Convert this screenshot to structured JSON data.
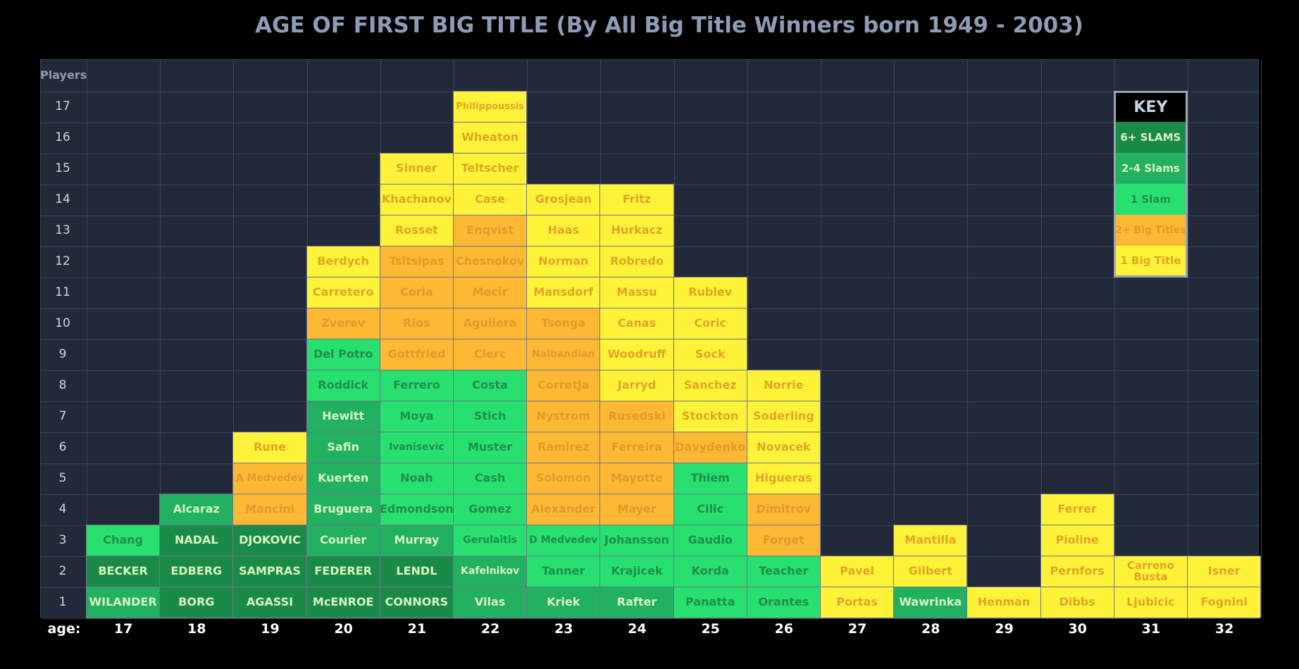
{
  "colors": {
    "background": "#000000",
    "grid_bg": "#222938",
    "six_plus_slams": "#1a8a48",
    "two_four_slams": "#22b061",
    "one_slam": "#28e070",
    "two_plus_big_titles": "#fdb933",
    "one_big_title": "#fff33a",
    "text_on_green": "#d8f5c0",
    "text_on_yellow": "#e3a325",
    "text_on_orange": "#e59a2a"
  },
  "chart_data": {
    "type": "table",
    "title": "AGE OF FIRST BIG TITLE (By All Big Title Winners born 1949 - 2003)",
    "ylabel": "Players",
    "xlabel": "age:",
    "ages": [
      17,
      18,
      19,
      20,
      21,
      22,
      23,
      24,
      25,
      26,
      27,
      28,
      29,
      30,
      31,
      32
    ],
    "player_rows": [
      1,
      2,
      3,
      4,
      5,
      6,
      7,
      8,
      9,
      10,
      11,
      12,
      13,
      14,
      15,
      16,
      17
    ],
    "columns": [
      {
        "age": 17,
        "players": [
          {
            "name": "WILANDER",
            "category": "2-4 Slams"
          },
          {
            "name": "BECKER",
            "category": "6+ SLAMS"
          },
          {
            "name": "Chang",
            "category": "1 Slam"
          }
        ]
      },
      {
        "age": 18,
        "players": [
          {
            "name": "BORG",
            "category": "6+ SLAMS"
          },
          {
            "name": "EDBERG",
            "category": "6+ SLAMS"
          },
          {
            "name": "NADAL",
            "category": "6+ SLAMS"
          },
          {
            "name": "Alcaraz",
            "category": "2-4 Slams"
          }
        ]
      },
      {
        "age": 19,
        "players": [
          {
            "name": "AGASSI",
            "category": "6+ SLAMS"
          },
          {
            "name": "SAMPRAS",
            "category": "6+ SLAMS"
          },
          {
            "name": "DJOKOVIC",
            "category": "6+ SLAMS"
          },
          {
            "name": "Mancini",
            "category": "2+ Big Titles"
          },
          {
            "name": "A Medvedev",
            "category": "2+ Big Titles"
          },
          {
            "name": "Rune",
            "category": "1 Big Title"
          }
        ]
      },
      {
        "age": 20,
        "players": [
          {
            "name": "McENROE",
            "category": "6+ SLAMS"
          },
          {
            "name": "FEDERER",
            "category": "6+ SLAMS"
          },
          {
            "name": "Courier",
            "category": "2-4 Slams"
          },
          {
            "name": "Bruguera",
            "category": "2-4 Slams"
          },
          {
            "name": "Kuerten",
            "category": "2-4 Slams"
          },
          {
            "name": "Safin",
            "category": "2-4 Slams"
          },
          {
            "name": "Hewitt",
            "category": "2-4 Slams"
          },
          {
            "name": "Roddick",
            "category": "1 Slam"
          },
          {
            "name": "Del Potro",
            "category": "1 Slam"
          },
          {
            "name": "Zverev",
            "category": "2+ Big Titles"
          },
          {
            "name": "Carretero",
            "category": "1 Big Title"
          },
          {
            "name": "Berdych",
            "category": "1 Big Title"
          }
        ]
      },
      {
        "age": 21,
        "players": [
          {
            "name": "CONNORS",
            "category": "6+ SLAMS"
          },
          {
            "name": "LENDL",
            "category": "6+ SLAMS"
          },
          {
            "name": "Murray",
            "category": "2-4 Slams"
          },
          {
            "name": "Edmondson",
            "category": "1 Slam"
          },
          {
            "name": "Noah",
            "category": "1 Slam"
          },
          {
            "name": "Ivanisevic",
            "category": "1 Slam"
          },
          {
            "name": "Moya",
            "category": "1 Slam"
          },
          {
            "name": "Ferrero",
            "category": "1 Slam"
          },
          {
            "name": "Gottfried",
            "category": "2+ Big Titles"
          },
          {
            "name": "Rios",
            "category": "2+ Big Titles"
          },
          {
            "name": "Coria",
            "category": "2+ Big Titles"
          },
          {
            "name": "Tsitsipas",
            "category": "2+ Big Titles"
          },
          {
            "name": "Rosset",
            "category": "1 Big Title"
          },
          {
            "name": "Khachanov",
            "category": "1 Big Title"
          },
          {
            "name": "Sinner",
            "category": "1 Big Title"
          }
        ]
      },
      {
        "age": 22,
        "players": [
          {
            "name": "Vilas",
            "category": "2-4 Slams"
          },
          {
            "name": "Kafelnikov",
            "category": "2-4 Slams"
          },
          {
            "name": "Gerulaitis",
            "category": "1 Slam"
          },
          {
            "name": "Gomez",
            "category": "1 Slam"
          },
          {
            "name": "Cash",
            "category": "1 Slam"
          },
          {
            "name": "Muster",
            "category": "1 Slam"
          },
          {
            "name": "Stich",
            "category": "1 Slam"
          },
          {
            "name": "Costa",
            "category": "1 Slam"
          },
          {
            "name": "Clerc",
            "category": "2+ Big Titles"
          },
          {
            "name": "Aguilera",
            "category": "2+ Big Titles"
          },
          {
            "name": "Mecir",
            "category": "2+ Big Titles"
          },
          {
            "name": "Chesnokov",
            "category": "2+ Big Titles"
          },
          {
            "name": "Enqvist",
            "category": "2+ Big Titles"
          },
          {
            "name": "Case",
            "category": "1 Big Title"
          },
          {
            "name": "Teltscher",
            "category": "1 Big Title"
          },
          {
            "name": "Wheaton",
            "category": "1 Big Title"
          },
          {
            "name": "Philippoussis",
            "category": "1 Big Title"
          }
        ]
      },
      {
        "age": 23,
        "players": [
          {
            "name": "Kriek",
            "category": "2-4 Slams"
          },
          {
            "name": "Tanner",
            "category": "1 Slam"
          },
          {
            "name": "D Medvedev",
            "category": "1 Slam"
          },
          {
            "name": "Alexander",
            "category": "2+ Big Titles"
          },
          {
            "name": "Solomon",
            "category": "2+ Big Titles"
          },
          {
            "name": "Ramirez",
            "category": "2+ Big Titles"
          },
          {
            "name": "Nystrom",
            "category": "2+ Big Titles"
          },
          {
            "name": "Corretja",
            "category": "2+ Big Titles"
          },
          {
            "name": "Nalbandian",
            "category": "2+ Big Titles"
          },
          {
            "name": "Tsonga",
            "category": "2+ Big Titles"
          },
          {
            "name": "Mansdorf",
            "category": "1 Big Title"
          },
          {
            "name": "Norman",
            "category": "1 Big Title"
          },
          {
            "name": "Haas",
            "category": "1 Big Title"
          },
          {
            "name": "Grosjean",
            "category": "1 Big Title"
          }
        ]
      },
      {
        "age": 24,
        "players": [
          {
            "name": "Rafter",
            "category": "2-4 Slams"
          },
          {
            "name": "Krajicek",
            "category": "1 Slam"
          },
          {
            "name": "Johansson",
            "category": "1 Slam"
          },
          {
            "name": "Mayer",
            "category": "2+ Big Titles"
          },
          {
            "name": "Mayotte",
            "category": "2+ Big Titles"
          },
          {
            "name": "Ferreira",
            "category": "2+ Big Titles"
          },
          {
            "name": "Rusedski",
            "category": "2+ Big Titles"
          },
          {
            "name": "Jarryd",
            "category": "1 Big Title"
          },
          {
            "name": "Woodruff",
            "category": "1 Big Title"
          },
          {
            "name": "Canas",
            "category": "1 Big Title"
          },
          {
            "name": "Massu",
            "category": "1 Big Title"
          },
          {
            "name": "Robredo",
            "category": "1 Big Title"
          },
          {
            "name": "Hurkacz",
            "category": "1 Big Title"
          },
          {
            "name": "Fritz",
            "category": "1 Big Title"
          }
        ]
      },
      {
        "age": 25,
        "players": [
          {
            "name": "Panatta",
            "category": "1 Slam"
          },
          {
            "name": "Korda",
            "category": "1 Slam"
          },
          {
            "name": "Gaudio",
            "category": "1 Slam"
          },
          {
            "name": "Cilic",
            "category": "1 Slam"
          },
          {
            "name": "Thiem",
            "category": "1 Slam"
          },
          {
            "name": "Davydenko",
            "category": "2+ Big Titles"
          },
          {
            "name": "Stockton",
            "category": "1 Big Title"
          },
          {
            "name": "Sanchez",
            "category": "1 Big Title"
          },
          {
            "name": "Sock",
            "category": "1 Big Title"
          },
          {
            "name": "Coric",
            "category": "1 Big Title"
          },
          {
            "name": "Rublev",
            "category": "1 Big Title"
          }
        ]
      },
      {
        "age": 26,
        "players": [
          {
            "name": "Orantes",
            "category": "1 Slam"
          },
          {
            "name": "Teacher",
            "category": "1 Slam"
          },
          {
            "name": "Forget",
            "category": "2+ Big Titles"
          },
          {
            "name": "Dimitrov",
            "category": "2+ Big Titles"
          },
          {
            "name": "Higueras",
            "category": "1 Big Title"
          },
          {
            "name": "Novacek",
            "category": "1 Big Title"
          },
          {
            "name": "Soderling",
            "category": "1 Big Title"
          },
          {
            "name": "Norrie",
            "category": "1 Big Title"
          }
        ]
      },
      {
        "age": 27,
        "players": [
          {
            "name": "Portas",
            "category": "1 Big Title"
          },
          {
            "name": "Pavel",
            "category": "1 Big Title"
          }
        ]
      },
      {
        "age": 28,
        "players": [
          {
            "name": "Wawrinka",
            "category": "2-4 Slams"
          },
          {
            "name": "Gilbert",
            "category": "1 Big Title"
          },
          {
            "name": "Mantilla",
            "category": "1 Big Title"
          }
        ]
      },
      {
        "age": 29,
        "players": [
          {
            "name": "Henman",
            "category": "1 Big Title"
          }
        ]
      },
      {
        "age": 30,
        "players": [
          {
            "name": "Dibbs",
            "category": "1 Big Title"
          },
          {
            "name": "Pernfors",
            "category": "1 Big Title"
          },
          {
            "name": "Pioline",
            "category": "1 Big Title"
          },
          {
            "name": "Ferrer",
            "category": "1 Big Title"
          }
        ]
      },
      {
        "age": 31,
        "players": [
          {
            "name": "Ljubicic",
            "category": "1 Big Title"
          },
          {
            "name": "Carreno Busta",
            "category": "1 Big Title"
          }
        ]
      },
      {
        "age": 32,
        "players": [
          {
            "name": "Fognini",
            "category": "1 Big Title"
          },
          {
            "name": "Isner",
            "category": "1 Big Title"
          }
        ]
      }
    ],
    "legend": {
      "title": "KEY",
      "placement": "top-right",
      "entries": [
        {
          "label": "6+ SLAMS",
          "category": "6+ SLAMS"
        },
        {
          "label": "2-4 Slams",
          "category": "2-4 Slams"
        },
        {
          "label": "1 Slam",
          "category": "1 Slam"
        },
        {
          "label": "2+ Big Titles",
          "category": "2+ Big Titles"
        },
        {
          "label": "1 Big Title",
          "category": "1 Big Title"
        }
      ]
    },
    "grid": true
  }
}
